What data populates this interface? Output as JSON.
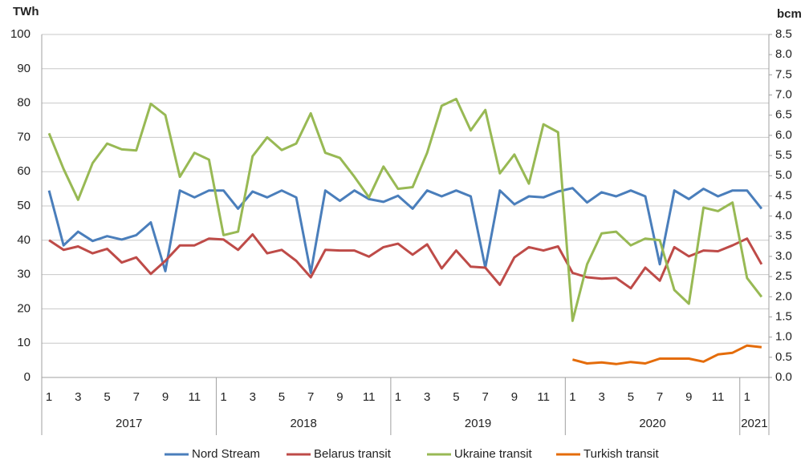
{
  "chart_data": {
    "type": "line",
    "y_label": "TWh",
    "y2_label": "bcm",
    "categories": [
      "1",
      null,
      "3",
      null,
      "5",
      null,
      "7",
      null,
      "9",
      null,
      "11",
      null,
      "1",
      null,
      "3",
      null,
      "5",
      null,
      "7",
      null,
      "9",
      null,
      "11",
      null,
      "1",
      null,
      "3",
      null,
      "5",
      null,
      "7",
      null,
      "9",
      null,
      "11",
      null,
      "1",
      null,
      "3",
      null,
      "5",
      null,
      "7",
      null,
      "9",
      null,
      "11",
      null,
      "1",
      null
    ],
    "groups": [
      "2017",
      "2018",
      "2019",
      "2020",
      "2021"
    ],
    "ylim": [
      0,
      100
    ],
    "yticks": [
      0,
      10,
      20,
      30,
      40,
      50,
      60,
      70,
      80,
      90,
      100
    ],
    "y2lim": [
      0,
      8.5
    ],
    "y2ticks": [
      {
        "value": 0,
        "label": "0.0"
      },
      0.5,
      {
        "value": 1,
        "label": "1.0"
      },
      1.5,
      {
        "value": 2,
        "label": "2.0"
      },
      2.5,
      {
        "value": 3,
        "label": "3.0"
      },
      3.5,
      {
        "value": 4,
        "label": "4.0"
      },
      4.5,
      {
        "value": 5,
        "label": "5.0"
      },
      5.5,
      {
        "value": 6,
        "label": "6.0"
      },
      6.5,
      {
        "value": 7,
        "label": "7.0"
      },
      7.5,
      {
        "value": 8,
        "label": "8.0"
      },
      8.5
    ],
    "grid": true,
    "legend": "bottom",
    "series": [
      {
        "name": "Nord Stream",
        "color": "#4a7ebb",
        "values": [
          54.5,
          38.5,
          42.5,
          39.8,
          41.2,
          40.2,
          41.5,
          45.2,
          31,
          54.5,
          52.5,
          54.5,
          54.5,
          49.2,
          54.2,
          52.5,
          54.5,
          52.5,
          30.5,
          54.5,
          51.5,
          54.5,
          52,
          51.2,
          53,
          49.2,
          54.5,
          52.8,
          54.5,
          52.8,
          32,
          54.5,
          50.5,
          52.8,
          52.5,
          54.2,
          55.2,
          51,
          54,
          52.8,
          54.5,
          52.8,
          33,
          54.5,
          52,
          55,
          52.8,
          54.5,
          54.5,
          49.2
        ]
      },
      {
        "name": "Belarus transit",
        "color": "#be4b48",
        "values": [
          40,
          37.2,
          38.2,
          36.2,
          37.5,
          33.5,
          35,
          30.2,
          34,
          38.5,
          38.5,
          40.5,
          40.2,
          37.2,
          41.7,
          36.2,
          37.2,
          34,
          29.2,
          37.2,
          37,
          37,
          35.2,
          38,
          39,
          35.8,
          38.8,
          31.8,
          37,
          32.3,
          32,
          27,
          35,
          38,
          37,
          38.2,
          30.5,
          29.2,
          28.8,
          29,
          26,
          32,
          28.2,
          38,
          35.3,
          37,
          36.8,
          38.5,
          40.5,
          33
        ]
      },
      {
        "name": "Ukraine transit",
        "color": "#98b954",
        "values": [
          71.2,
          60.8,
          51.8,
          62.5,
          68.2,
          66.5,
          66.2,
          79.8,
          76.5,
          58.5,
          65.5,
          63.5,
          41.5,
          42.5,
          64.5,
          70,
          66.3,
          68.2,
          77,
          65.5,
          64,
          58.5,
          52.5,
          61.5,
          55,
          55.5,
          65.5,
          79.2,
          81.2,
          72,
          78,
          59.5,
          65,
          56.5,
          73.8,
          71.5,
          16.5,
          33,
          42,
          42.5,
          38.5,
          40.5,
          40,
          25.5,
          21.5,
          49.5,
          48.5,
          51,
          29,
          23.5
        ]
      },
      {
        "name": "Turkish transit",
        "color": "#e46c0a",
        "values": [
          null,
          null,
          null,
          null,
          null,
          null,
          null,
          null,
          null,
          null,
          null,
          null,
          null,
          null,
          null,
          null,
          null,
          null,
          null,
          null,
          null,
          null,
          null,
          null,
          null,
          null,
          null,
          null,
          null,
          null,
          null,
          null,
          null,
          null,
          null,
          null,
          5.2,
          4.1,
          4.4,
          3.9,
          4.5,
          4.1,
          5.5,
          5.5,
          5.5,
          4.6,
          6.7,
          7.2,
          9.3,
          8.8
        ]
      }
    ]
  }
}
